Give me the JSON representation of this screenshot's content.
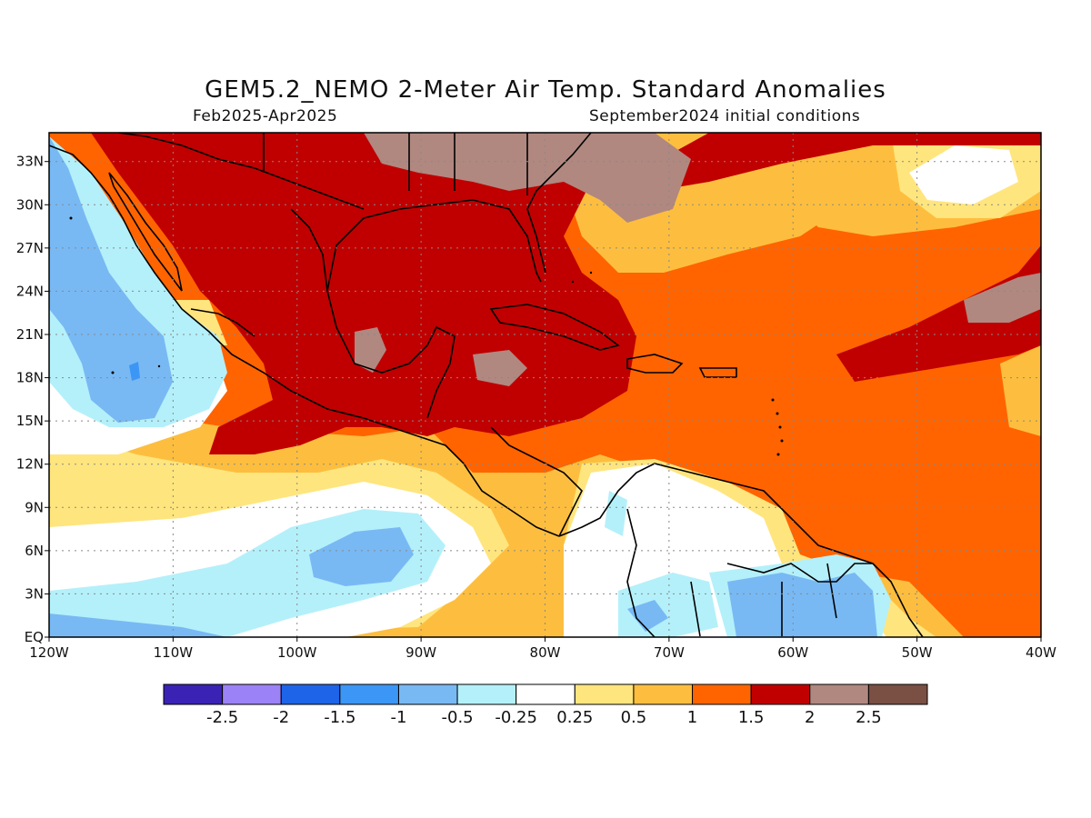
{
  "title": "GEM5.2_NEMO 2-Meter Air Temp. Standard Anomalies",
  "subtitle_left": "Feb2025-Apr2025",
  "subtitle_right": "September2024 initial conditions",
  "map_extent": {
    "lon": [
      -120,
      -40
    ],
    "lat": [
      0,
      35
    ]
  },
  "lat_ticks": [
    {
      "value": 33,
      "label": "33N"
    },
    {
      "value": 30,
      "label": "30N"
    },
    {
      "value": 27,
      "label": "27N"
    },
    {
      "value": 24,
      "label": "24N"
    },
    {
      "value": 21,
      "label": "21N"
    },
    {
      "value": 18,
      "label": "18N"
    },
    {
      "value": 15,
      "label": "15N"
    },
    {
      "value": 12,
      "label": "12N"
    },
    {
      "value": 9,
      "label": "9N"
    },
    {
      "value": 6,
      "label": "6N"
    },
    {
      "value": 3,
      "label": "3N"
    },
    {
      "value": 0,
      "label": "EQ"
    }
  ],
  "lon_ticks": [
    {
      "value": -120,
      "label": "120W"
    },
    {
      "value": -110,
      "label": "110W"
    },
    {
      "value": -100,
      "label": "100W"
    },
    {
      "value": -90,
      "label": "90W"
    },
    {
      "value": -80,
      "label": "80W"
    },
    {
      "value": -70,
      "label": "70W"
    },
    {
      "value": -60,
      "label": "60W"
    },
    {
      "value": -50,
      "label": "50W"
    },
    {
      "value": -40,
      "label": "40W"
    }
  ],
  "colorbar": {
    "colors": [
      "#3a22b5",
      "#9b82f6",
      "#1e64e8",
      "#3c96f5",
      "#78b9f4",
      "#b4f0fa",
      "#ffffff",
      "#ffe57d",
      "#fdbe3f",
      "#ff6400",
      "#c00000",
      "#b08880",
      "#7a4f44"
    ],
    "labels": [
      "-2.5",
      "-2",
      "-1.5",
      "-1",
      "-0.5",
      "-0.25",
      "0.25",
      "0.5",
      "1",
      "1.5",
      "2",
      "2.5"
    ]
  }
}
